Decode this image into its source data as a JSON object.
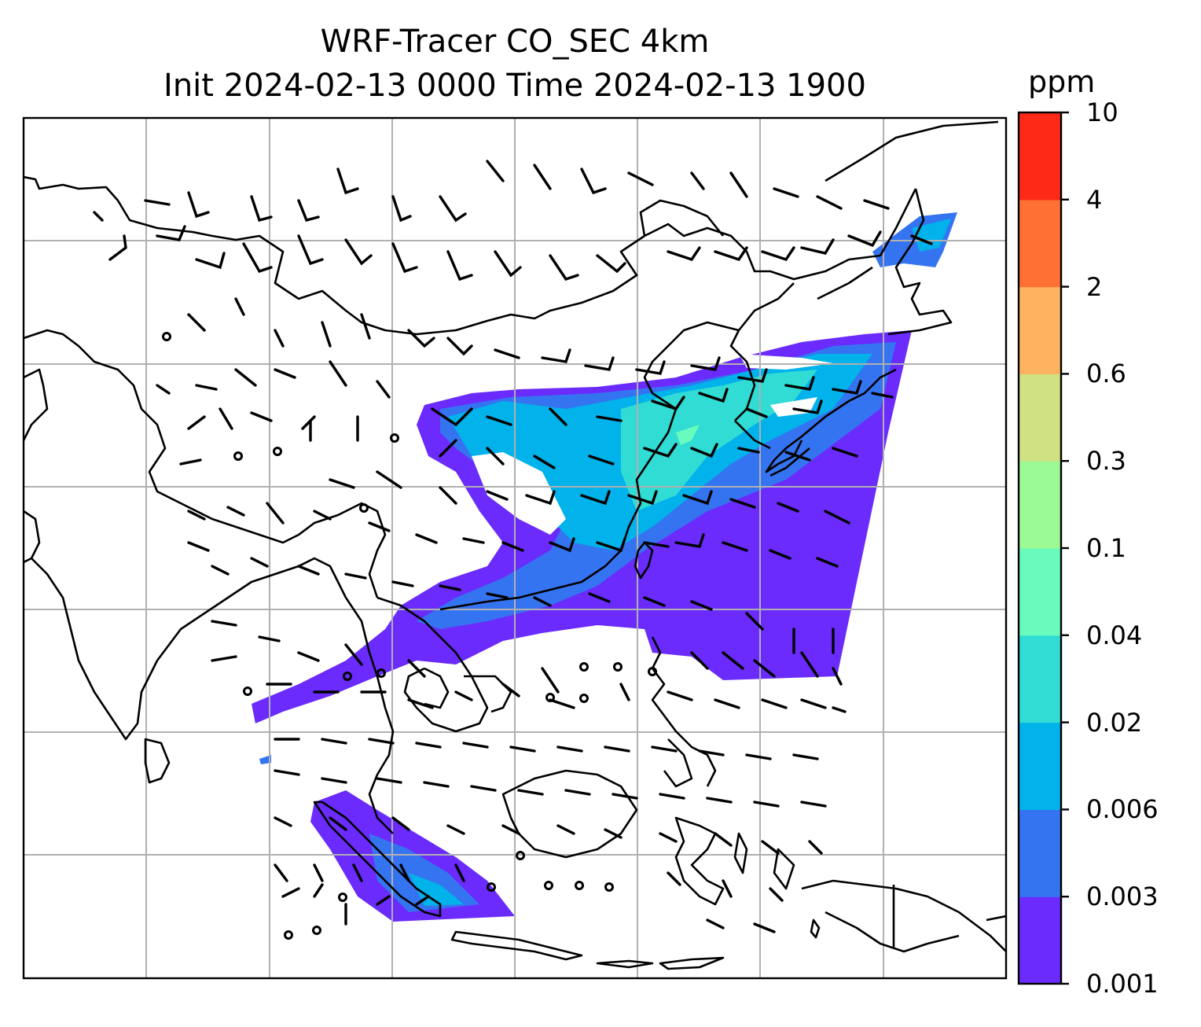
{
  "title_line1": "WRF-Tracer CO_SEC 4km",
  "title_line2": "Init 2024-02-13 0000 Time 2024-02-13 1900",
  "colorbar": {
    "unit": "ppm",
    "ticks": [
      "10",
      "4",
      "2",
      "0.6",
      "0.3",
      "0.1",
      "0.04",
      "0.02",
      "0.006",
      "0.003",
      "0.001"
    ],
    "colors": [
      "#6a2bfc",
      "#3574f1",
      "#02b2ea",
      "#30dcd4",
      "#68fbbd",
      "#9bfa95",
      "#cfe183",
      "#ffb25f",
      "#ff7035",
      "#fe2a17"
    ]
  },
  "map": {
    "gridlines": "on",
    "coastline_color": "#000000",
    "gridline_color": "#b0b0b0"
  }
}
